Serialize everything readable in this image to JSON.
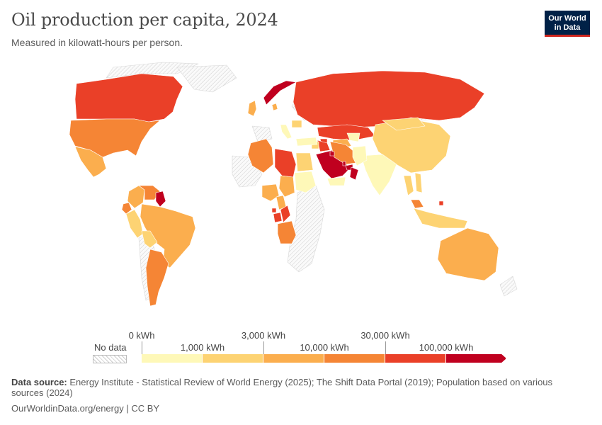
{
  "header": {
    "title": "Oil production per capita, 2024",
    "subtitle": "Measured in kilowatt-hours per person."
  },
  "logo": {
    "line1": "Our World",
    "line2": "in Data"
  },
  "chart_data": {
    "type": "choropleth-map",
    "title": "Oil production per capita, 2024",
    "subtitle": "Measured in kilowatt-hours per person.",
    "unit": "kWh",
    "no_data_label": "No data",
    "bins": [
      {
        "from": 0,
        "to": 1000,
        "color": "#fef8b8"
      },
      {
        "from": 1000,
        "to": 3000,
        "color": "#fdd373"
      },
      {
        "from": 3000,
        "to": 10000,
        "color": "#fbae4e"
      },
      {
        "from": 10000,
        "to": 30000,
        "color": "#f58535"
      },
      {
        "from": 30000,
        "to": 100000,
        "color": "#ea4028"
      },
      {
        "from": 100000,
        "to": null,
        "color": "#c0001f"
      }
    ],
    "legend_upper_labels": [
      "0 kWh",
      "3,000 kWh",
      "30,000 kWh"
    ],
    "legend_lower_labels": [
      "1,000 kWh",
      "10,000 kWh",
      "100,000 kWh"
    ],
    "regions": [
      {
        "name": "Canada",
        "bin": 4
      },
      {
        "name": "United States",
        "bin": 3
      },
      {
        "name": "Mexico",
        "bin": 2
      },
      {
        "name": "Colombia",
        "bin": 2
      },
      {
        "name": "Venezuela",
        "bin": 3
      },
      {
        "name": "Guyana",
        "bin": 5
      },
      {
        "name": "Ecuador",
        "bin": 3
      },
      {
        "name": "Peru",
        "bin": 1
      },
      {
        "name": "Brazil",
        "bin": 2
      },
      {
        "name": "Argentina",
        "bin": 3
      },
      {
        "name": "Bolivia",
        "bin": 1
      },
      {
        "name": "Norway",
        "bin": 5
      },
      {
        "name": "United Kingdom",
        "bin": 2
      },
      {
        "name": "Denmark",
        "bin": 2
      },
      {
        "name": "Russia",
        "bin": 4
      },
      {
        "name": "Kazakhstan",
        "bin": 4
      },
      {
        "name": "Azerbaijan",
        "bin": 4
      },
      {
        "name": "Turkmenistan",
        "bin": 2
      },
      {
        "name": "Uzbekistan",
        "bin": 0
      },
      {
        "name": "Algeria",
        "bin": 3
      },
      {
        "name": "Libya",
        "bin": 4
      },
      {
        "name": "Egypt",
        "bin": 1
      },
      {
        "name": "Sudan",
        "bin": 0
      },
      {
        "name": "Chad",
        "bin": 2
      },
      {
        "name": "Nigeria",
        "bin": 2
      },
      {
        "name": "Cameroon",
        "bin": 2
      },
      {
        "name": "Equatorial Guinea",
        "bin": 4
      },
      {
        "name": "Gabon",
        "bin": 4
      },
      {
        "name": "Congo",
        "bin": 4
      },
      {
        "name": "Angola",
        "bin": 3
      },
      {
        "name": "Saudi Arabia",
        "bin": 5
      },
      {
        "name": "Iraq",
        "bin": 4
      },
      {
        "name": "Iran",
        "bin": 3
      },
      {
        "name": "Kuwait",
        "bin": 5
      },
      {
        "name": "Qatar",
        "bin": 5
      },
      {
        "name": "United Arab Emirates",
        "bin": 5
      },
      {
        "name": "Oman",
        "bin": 5
      },
      {
        "name": "Yemen",
        "bin": 0
      },
      {
        "name": "Syria",
        "bin": 1
      },
      {
        "name": "Turkey",
        "bin": 0
      },
      {
        "name": "China",
        "bin": 1
      },
      {
        "name": "Mongolia",
        "bin": 1
      },
      {
        "name": "India",
        "bin": 0
      },
      {
        "name": "Pakistan",
        "bin": 0
      },
      {
        "name": "Thailand",
        "bin": 1
      },
      {
        "name": "Vietnam",
        "bin": 1
      },
      {
        "name": "Malaysia",
        "bin": 3
      },
      {
        "name": "Brunei",
        "bin": 4
      },
      {
        "name": "Indonesia",
        "bin": 1
      },
      {
        "name": "Australia",
        "bin": 2
      },
      {
        "name": "Italy",
        "bin": 0
      },
      {
        "name": "Romania",
        "bin": 1
      }
    ]
  },
  "footer": {
    "source_label": "Data source:",
    "source_text": "Energy Institute - Statistical Review of World Energy (2025); The Shift Data Portal (2019); Population based on various sources (2024)",
    "url": "OurWorldinData.org/energy | CC BY"
  }
}
